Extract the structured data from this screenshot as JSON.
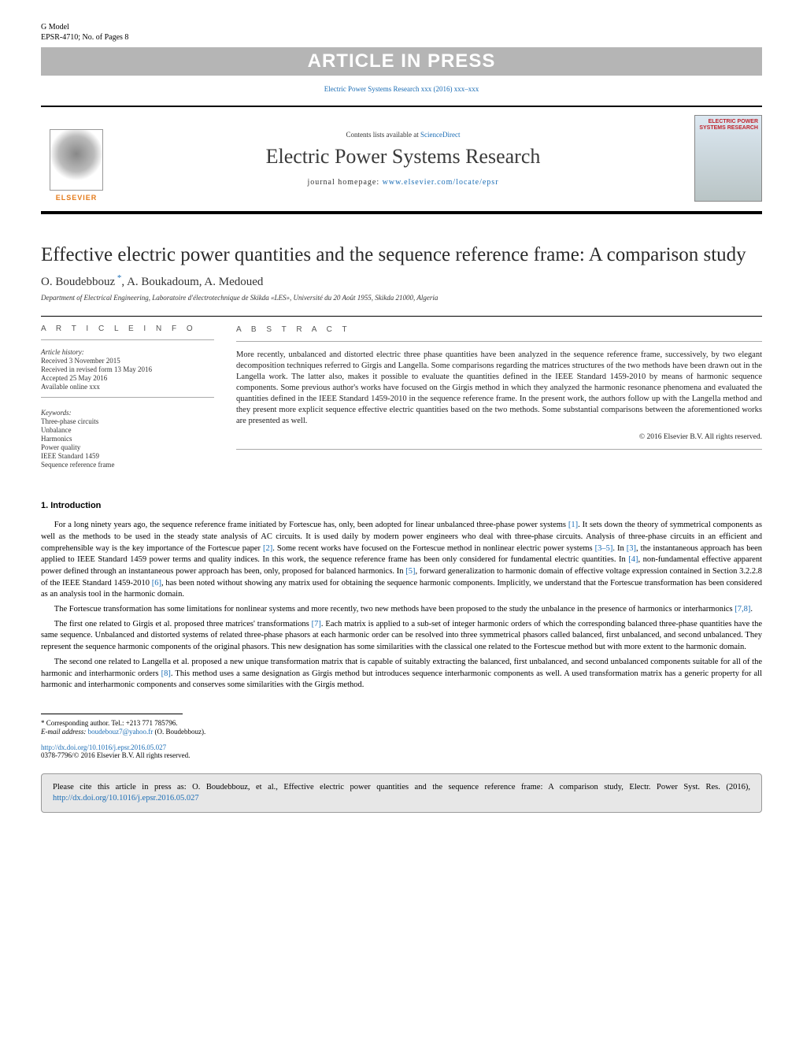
{
  "header": {
    "gmodel": "G Model",
    "article_id": "EPSR-4710;",
    "pages": "No. of Pages 8",
    "in_press": "ARTICLE IN PRESS",
    "journal_ref": "Electric Power Systems Research xxx (2016) xxx–xxx"
  },
  "masthead": {
    "contents_prefix": "Contents lists available at ",
    "contents_link": "ScienceDirect",
    "journal_title": "Electric Power Systems Research",
    "homepage_prefix": "journal homepage: ",
    "homepage_link": "www.elsevier.com/locate/epsr",
    "publisher": "ELSEVIER",
    "cover_label": "ELECTRIC POWER SYSTEMS RESEARCH"
  },
  "article": {
    "title": "Effective electric power quantities and the sequence reference frame: A comparison study",
    "authors": "O. Boudebbouz *, A. Boukadoum, A. Medoued",
    "affiliation": "Department of Electrical Engineering, Laboratoire d'électrotechnique de Skikda «LES», Université du 20 Août 1955, Skikda 21000, Algeria"
  },
  "info": {
    "section_label": "A R T I C L E    I N F O",
    "history_label": "Article history:",
    "received": "Received 3 November 2015",
    "revised": "Received in revised form 13 May 2016",
    "accepted": "Accepted 25 May 2016",
    "online": "Available online xxx",
    "keywords_label": "Keywords:",
    "keywords": [
      "Three-phase circuits",
      "Unbalance",
      "Harmonics",
      "Power quality",
      "IEEE Standard 1459",
      "Sequence reference frame"
    ]
  },
  "abstract": {
    "section_label": "A B S T R A C T",
    "text": "More recently, unbalanced and distorted electric three phase quantities have been analyzed in the sequence reference frame, successively, by two elegant decomposition techniques referred to Girgis and Langella. Some comparisons regarding the matrices structures of the two methods have been drawn out in the Langella work. The latter also, makes it possible to evaluate the quantities defined in the IEEE Standard 1459-2010 by means of harmonic sequence components. Some previous author's works have focused on the Girgis method in which they analyzed the harmonic resonance phenomena and evaluated the quantities defined in the IEEE Standard 1459-2010 in the sequence reference frame. In the present work, the authors follow up with the Langella method and they present more explicit sequence effective electric quantities based on the two methods. Some substantial comparisons between the aforementioned works are presented as well.",
    "copyright": "© 2016 Elsevier B.V. All rights reserved."
  },
  "sections": {
    "intro_heading": "1.  Introduction",
    "intro_paragraphs": [
      "For a long ninety years ago, the sequence reference frame initiated by Fortescue has, only, been adopted for linear unbalanced three-phase power systems [1]. It sets down the theory of symmetrical components as well as the methods to be used in the steady state analysis of AC circuits. It is used daily by modern power engineers who deal with three-phase circuits. Analysis of three-phase circuits in an efficient and comprehensible way is the key importance of the Fortescue paper [2]. Some recent works have focused on the Fortescue method in nonlinear electric power systems [3–5]. In [3], the instantaneous approach has been applied to IEEE Standard 1459 power terms and quality indices. In this work, the sequence reference frame has been only considered for fundamental electric quantities. In [4], non-fundamental effective apparent power defined through an instantaneous power approach has been, only, proposed for balanced harmonics. In [5], forward generalization to harmonic domain of effective voltage expression contained in Section 3.2.2.8 of the IEEE Standard 1459-2010 [6], has been noted without showing any matrix used for obtaining the sequence harmonic components. Implicitly, we understand that the Fortescue transformation has been considered as an analysis tool in the harmonic domain.",
      "The Fortescue transformation has some limitations for nonlinear systems and more recently, two new methods have been proposed to the study the unbalance in the presence of harmonics or interharmonics [7,8].",
      "The first one related to Girgis et al. proposed three matrices' transformations [7]. Each matrix is applied to a sub-set of integer harmonic orders of which the corresponding balanced three-phase quantities have the same sequence. Unbalanced and distorted systems of related three-phase phasors at each harmonic order can be resolved into three symmetrical phasors called balanced, first unbalanced, and second unbalanced. They represent the sequence harmonic components of the original phasors. This new designation has some similarities with the classical one related to the Fortescue method but with more extent to the harmonic domain.",
      "The second one related to Langella et al. proposed a new unique transformation matrix that is capable of suitably extracting the balanced, first unbalanced, and second unbalanced components suitable for all of the harmonic and interharmonic orders [8]. This method uses a same designation as Girgis method but introduces sequence interharmonic components as well. A used transformation matrix has a generic property for all harmonic and interharmonic components and conserves some similarities with the Girgis method."
    ],
    "ref_links": [
      "[1]",
      "[2]",
      "[3–5]",
      "[3]",
      "[4]",
      "[5]",
      "[6]",
      "[7,8]",
      "[7]",
      "[8]"
    ]
  },
  "footnotes": {
    "corresponding": "* Corresponding author. Tel.: +213 771 785796.",
    "email_label": "E-mail address: ",
    "email": "boudebouz7@yahoo.fr",
    "email_suffix": " (O. Boudebbouz)."
  },
  "doi": {
    "link": "http://dx.doi.org/10.1016/j.epsr.2016.05.027",
    "issn_line": "0378-7796/© 2016 Elsevier B.V. All rights reserved."
  },
  "citebox": {
    "text_prefix": "Please cite this article in press as: O. Boudebbouz, et al., Effective electric power quantities and the sequence reference frame: A comparison study, Electr. Power Syst. Res. (2016), ",
    "link": "http://dx.doi.org/10.1016/j.epsr.2016.05.027"
  },
  "colors": {
    "link": "#1b6db5",
    "in_press_bg": "#b5b5b5",
    "citebox_bg": "#e7e7e7",
    "elsevier_orange": "#e47a19",
    "cover_red": "#c0232c"
  }
}
